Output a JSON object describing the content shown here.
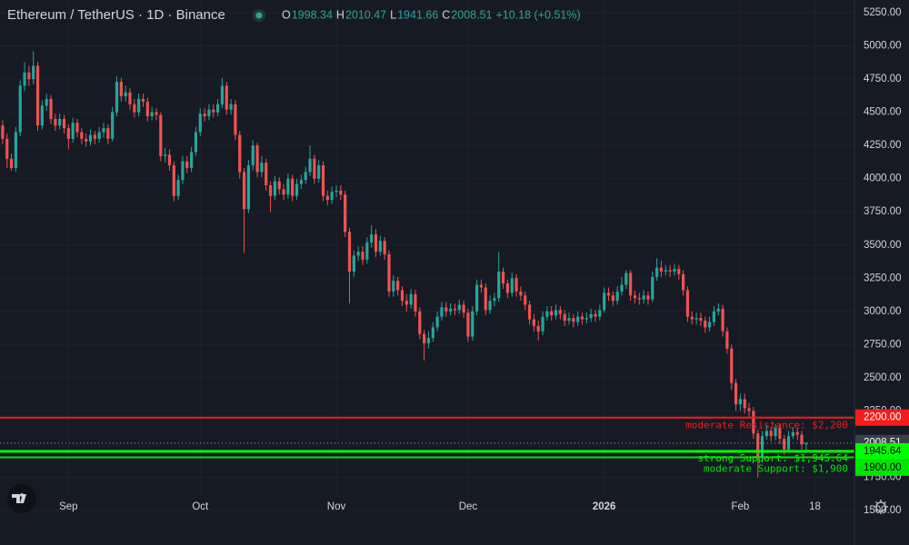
{
  "chart_data": {
    "type": "candlestick",
    "title": "Ethereum / TetherUS · 1D · Binance",
    "legend": [
      {
        "key": "O",
        "value": "1998.34"
      },
      {
        "key": "H",
        "value": "2010.47"
      },
      {
        "key": "L",
        "value": "1941.66"
      },
      {
        "key": "C",
        "value": "2008.51"
      }
    ],
    "change": "+10.18 (+0.51%)",
    "up_color": "#26a69a",
    "down_color": "#ef5350",
    "open": [
      4400,
      4300,
      4150,
      4080,
      4350,
      4700,
      4800,
      4750,
      4850,
      4400,
      4550,
      4600,
      4450,
      4400,
      4450,
      4380,
      4300,
      4420,
      4350,
      4300,
      4280,
      4330,
      4300,
      4350,
      4380,
      4300,
      4500,
      4730,
      4620,
      4650,
      4560,
      4500,
      4600,
      4580,
      4470,
      4500,
      4480,
      4170,
      4180,
      4100,
      3870,
      3990,
      4130,
      4080,
      4200,
      4350,
      4490,
      4470,
      4520,
      4500,
      4560,
      4700,
      4520,
      4560,
      4330,
      4050,
      3770,
      4100,
      4250,
      4050,
      4120,
      3950,
      3870,
      3980,
      3920,
      3880,
      4000,
      3870,
      3960,
      3990,
      4050,
      4150,
      4000,
      4100,
      3870,
      3840,
      3900,
      3910,
      3880,
      3600,
      3300,
      3420,
      3450,
      3390,
      3520,
      3580,
      3450,
      3530,
      3430,
      3150,
      3230,
      3160,
      3080,
      3050,
      3130,
      3000,
      2830,
      2760,
      2800,
      2880,
      2960,
      3030,
      3000,
      3020,
      3010,
      3050,
      2990,
      2810,
      3000,
      3200,
      3180,
      3010,
      3080,
      3100,
      3300,
      3210,
      3140,
      3250,
      3150,
      3120,
      3050,
      2940,
      2890,
      2850,
      2960,
      3000,
      2970,
      3010,
      2980,
      2930,
      2950,
      2920,
      2960,
      2940,
      2950,
      2980,
      2960,
      3010,
      3140,
      3120,
      3080,
      3150,
      3200,
      3290,
      3120,
      3100,
      3090,
      3120,
      3090,
      3260,
      3330,
      3300,
      3310,
      3300,
      3320,
      3280,
      3160,
      2960,
      2940,
      2950,
      2930,
      2880,
      2920,
      3000,
      3020,
      2850,
      2720,
      2460,
      2300,
      2340,
      2270,
      2250,
      2080,
      1900,
      2060,
      2100,
      2060,
      2120,
      2040,
      1960,
      2060,
      2090,
      2070,
      1998.34
    ],
    "high": [
      4440,
      4340,
      4190,
      4390,
      4740,
      4880,
      4850,
      4960,
      4880,
      4590,
      4640,
      4630,
      4490,
      4490,
      4480,
      4410,
      4460,
      4450,
      4380,
      4340,
      4370,
      4360,
      4390,
      4420,
      4410,
      4540,
      4770,
      4760,
      4700,
      4680,
      4600,
      4640,
      4640,
      4610,
      4540,
      4530,
      4500,
      4230,
      4220,
      4130,
      4030,
      4170,
      4170,
      4240,
      4390,
      4530,
      4530,
      4560,
      4560,
      4600,
      4760,
      4730,
      4600,
      4590,
      4360,
      4080,
      4140,
      4290,
      4270,
      4170,
      4150,
      3980,
      4020,
      4010,
      3960,
      4040,
      4030,
      4000,
      4030,
      4090,
      4250,
      4180,
      4140,
      4130,
      3910,
      3940,
      3950,
      3950,
      3910,
      3630,
      3460,
      3490,
      3490,
      3560,
      3650,
      3620,
      3570,
      3560,
      3460,
      3270,
      3260,
      3190,
      3130,
      3170,
      3160,
      3030,
      2860,
      2850,
      2920,
      3000,
      3070,
      3070,
      3060,
      3060,
      3090,
      3080,
      3020,
      3040,
      3240,
      3240,
      3210,
      3120,
      3140,
      3450,
      3330,
      3240,
      3290,
      3280,
      3190,
      3150,
      3080,
      2980,
      2930,
      3000,
      3040,
      3040,
      3050,
      3040,
      3010,
      2990,
      2980,
      3000,
      2990,
      2990,
      3020,
      3010,
      3050,
      3180,
      3180,
      3150,
      3190,
      3260,
      3310,
      3310,
      3160,
      3140,
      3160,
      3150,
      3300,
      3400,
      3380,
      3350,
      3350,
      3360,
      3350,
      3310,
      3190,
      3000,
      2990,
      2990,
      2960,
      2960,
      3040,
      3060,
      3050,
      2880,
      2750,
      2490,
      2380,
      2380,
      2310,
      2280,
      2110,
      2100,
      2140,
      2130,
      2150,
      2150,
      2070,
      2100,
      2130,
      2120,
      2100,
      2010.47
    ],
    "low": [
      4260,
      4080,
      4060,
      4050,
      4320,
      4660,
      4700,
      4710,
      4360,
      4370,
      4510,
      4410,
      4360,
      4370,
      4340,
      4220,
      4270,
      4310,
      4260,
      4240,
      4250,
      4260,
      4270,
      4310,
      4260,
      4280,
      4470,
      4580,
      4580,
      4520,
      4460,
      4470,
      4540,
      4430,
      4440,
      4440,
      4130,
      4120,
      4060,
      3830,
      3840,
      3960,
      4040,
      4050,
      4170,
      4320,
      4430,
      4440,
      4460,
      4470,
      4530,
      4480,
      4480,
      4290,
      4000,
      3440,
      3740,
      4060,
      4010,
      4010,
      3910,
      3750,
      3840,
      3880,
      3840,
      3850,
      3830,
      3840,
      3920,
      3960,
      4020,
      3960,
      3970,
      3830,
      3800,
      3810,
      3860,
      3840,
      3560,
      3060,
      3260,
      3380,
      3350,
      3360,
      3480,
      3410,
      3420,
      3390,
      3110,
      3110,
      3120,
      3040,
      3000,
      3020,
      2960,
      2790,
      2630,
      2720,
      2770,
      2850,
      2930,
      2960,
      2970,
      2970,
      2980,
      2950,
      2770,
      2780,
      2970,
      3140,
      2970,
      2980,
      3040,
      3070,
      3170,
      3100,
      3110,
      3110,
      3080,
      3010,
      2900,
      2850,
      2780,
      2820,
      2930,
      2930,
      2940,
      2940,
      2890,
      2900,
      2880,
      2890,
      2900,
      2910,
      2920,
      2920,
      2930,
      2990,
      3080,
      3040,
      3050,
      3120,
      3170,
      3080,
      3060,
      3050,
      3060,
      3050,
      3070,
      3230,
      3260,
      3270,
      3260,
      3270,
      3240,
      3120,
      2920,
      2900,
      2900,
      2890,
      2840,
      2850,
      2890,
      2970,
      2810,
      2680,
      2410,
      2250,
      2250,
      2230,
      2200,
      2040,
      1750,
      1860,
      2030,
      2020,
      2030,
      2000,
      1920,
      1940,
      2040,
      2030,
      1960,
      1941.66
    ],
    "close": [
      4300,
      4150,
      4080,
      4350,
      4700,
      4800,
      4750,
      4850,
      4400,
      4550,
      4600,
      4450,
      4400,
      4450,
      4380,
      4300,
      4420,
      4350,
      4300,
      4280,
      4330,
      4300,
      4350,
      4380,
      4300,
      4500,
      4730,
      4620,
      4650,
      4560,
      4500,
      4600,
      4580,
      4470,
      4500,
      4480,
      4170,
      4180,
      4100,
      3870,
      3990,
      4130,
      4080,
      4200,
      4350,
      4490,
      4470,
      4520,
      4500,
      4560,
      4700,
      4520,
      4560,
      4330,
      4050,
      3770,
      4100,
      4250,
      4050,
      4120,
      3950,
      3870,
      3980,
      3920,
      3880,
      4000,
      3870,
      3960,
      3990,
      4050,
      4150,
      4000,
      4100,
      3870,
      3840,
      3900,
      3910,
      3880,
      3600,
      3300,
      3420,
      3450,
      3390,
      3520,
      3580,
      3450,
      3530,
      3430,
      3150,
      3230,
      3160,
      3080,
      3050,
      3130,
      3000,
      2830,
      2760,
      2800,
      2880,
      2960,
      3030,
      3000,
      3020,
      3010,
      3050,
      2990,
      2810,
      3000,
      3200,
      3180,
      3010,
      3080,
      3100,
      3300,
      3210,
      3140,
      3250,
      3150,
      3120,
      3050,
      2940,
      2890,
      2850,
      2960,
      3000,
      2970,
      3010,
      2980,
      2930,
      2950,
      2920,
      2960,
      2940,
      2950,
      2980,
      2960,
      3010,
      3140,
      3120,
      3080,
      3150,
      3200,
      3290,
      3120,
      3100,
      3090,
      3120,
      3090,
      3260,
      3330,
      3300,
      3310,
      3300,
      3320,
      3280,
      3160,
      2960,
      2940,
      2950,
      2930,
      2880,
      2920,
      3000,
      3020,
      2850,
      2720,
      2460,
      2300,
      2340,
      2270,
      2250,
      2080,
      1900,
      2060,
      2100,
      2060,
      2120,
      2040,
      1960,
      2060,
      2090,
      2070,
      1998.34,
      2008.51
    ],
    "xlim": [
      -0.6,
      194
    ],
    "xticks": [
      {
        "value": 15,
        "label": "Sep"
      },
      {
        "value": 45,
        "label": "Oct"
      },
      {
        "value": 76,
        "label": "Nov"
      },
      {
        "value": 106,
        "label": "Dec"
      },
      {
        "value": 137,
        "label": "2026"
      },
      {
        "value": 168,
        "label": "Feb"
      },
      {
        "value": 185,
        "label": "18"
      }
    ],
    "ylim": [
      1411,
      5346
    ],
    "yticks": [
      {
        "value": 1500,
        "label": "1500.00"
      },
      {
        "value": 1750,
        "label": "1750.00"
      },
      {
        "value": 2000,
        "label": "2000.00"
      },
      {
        "value": 2250,
        "label": "2250.00"
      },
      {
        "value": 2500,
        "label": "2500.00"
      },
      {
        "value": 2750,
        "label": "2750.00"
      },
      {
        "value": 3000,
        "label": "3000.00"
      },
      {
        "value": 3250,
        "label": "3250.00"
      },
      {
        "value": 3500,
        "label": "3500.00"
      },
      {
        "value": 3750,
        "label": "3750.00"
      },
      {
        "value": 4000,
        "label": "4000.00"
      },
      {
        "value": 4250,
        "label": "4250.00"
      },
      {
        "value": 4500,
        "label": "4500.00"
      },
      {
        "value": 4750,
        "label": "4750.00"
      },
      {
        "value": 5000,
        "label": "5000.00"
      },
      {
        "value": 5250,
        "label": "5250.00"
      }
    ],
    "grid": true,
    "last_price": 2008.51,
    "levels": [
      {
        "name": "moderate Resistance: $2,200",
        "value": 2200,
        "value_label": "2200.00",
        "color": "#f71c1c",
        "tag_text": "#ffffff"
      },
      {
        "name": "strong Support: $1,945.64",
        "value": 1945.64,
        "value_label": "1945.64",
        "color": "#00ff00",
        "tag_text": "#000000"
      },
      {
        "name": "moderate Support: $1,900",
        "value": 1900,
        "value_label": "1900.00",
        "color": "#00e600",
        "tag_text": "#000000"
      }
    ]
  }
}
